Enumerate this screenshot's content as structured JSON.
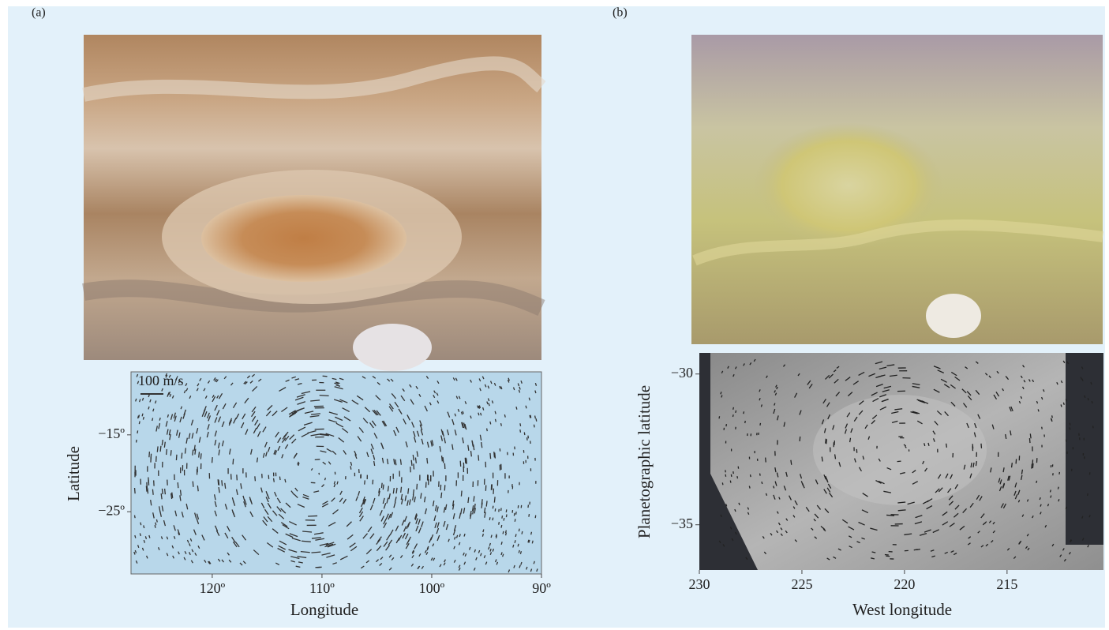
{
  "panels": [
    {
      "label": "(a)",
      "scale_label": "100 m/s",
      "x_axis": {
        "title": "Longitude",
        "lim": [
          127.4,
          90
        ],
        "ticks": [
          {
            "value": 120,
            "label": "120º"
          },
          {
            "value": 110,
            "label": "110º"
          },
          {
            "value": 100,
            "label": "100º"
          },
          {
            "value": 90,
            "label": "90º"
          }
        ]
      },
      "y_axis": {
        "title": "Latitude",
        "lim": [
          -6.8,
          -33.1
        ],
        "ticks": [
          {
            "value": -15,
            "label": "−15º"
          },
          {
            "value": -25,
            "label": "−25º"
          }
        ]
      }
    },
    {
      "label": "(b)",
      "x_axis": {
        "title": "West longitude",
        "lim": [
          230,
          210.3
        ],
        "ticks": [
          230,
          225,
          220,
          215
        ]
      },
      "y_axis": {
        "title": "Planetographic latitude",
        "lim": [
          -29.3,
          -36.5
        ],
        "ticks": [
          {
            "value": -30,
            "label": "−30"
          },
          {
            "value": -35,
            "label": "−35"
          }
        ]
      }
    }
  ]
}
